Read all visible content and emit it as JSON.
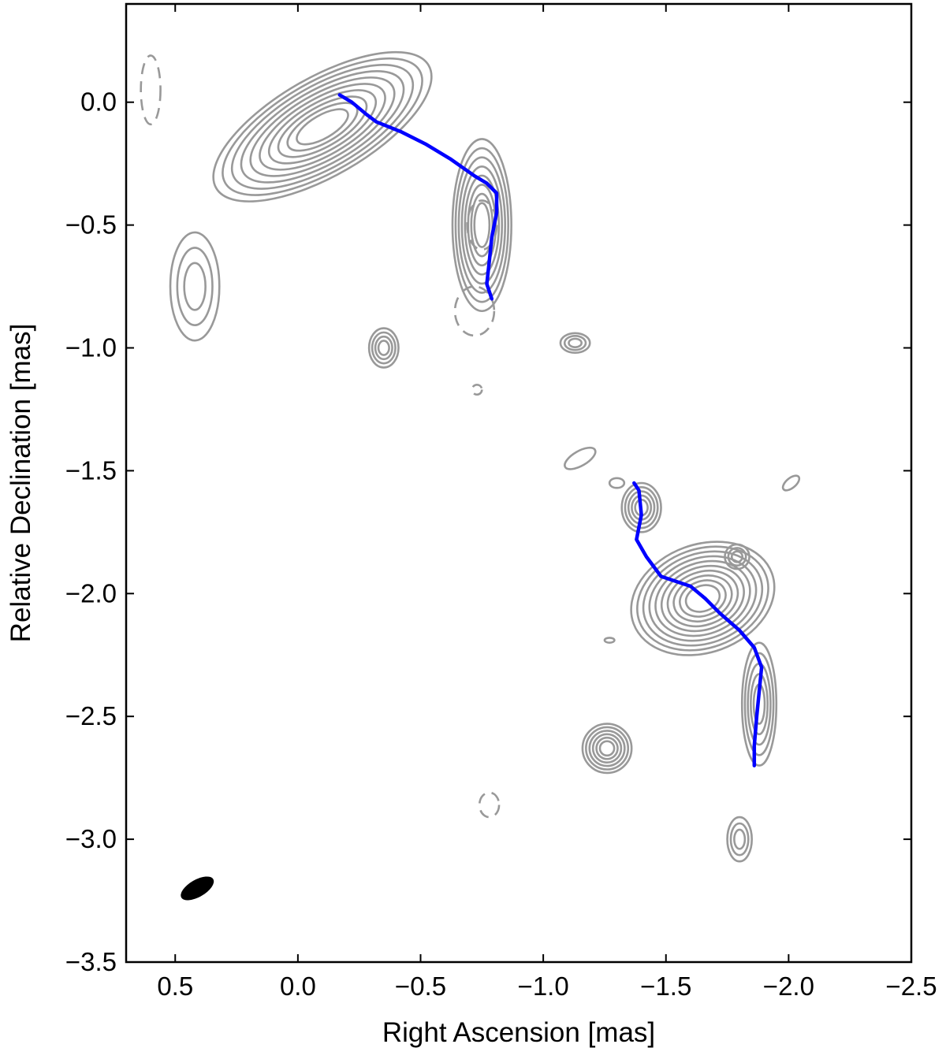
{
  "chart_data": {
    "type": "contour",
    "title": "",
    "xlabel": "Right Ascension [mas]",
    "ylabel": "Relative Declination [mas]",
    "xlim": [
      0.7,
      -2.5
    ],
    "ylim": [
      -3.5,
      0.4
    ],
    "x_axis_inverted": true,
    "xticks": [
      0.5,
      0.0,
      -0.5,
      -1.0,
      -1.5,
      -2.0,
      -2.5
    ],
    "xtick_labels": [
      "0.5",
      "0.0",
      "−0.5",
      "−1.0",
      "−1.5",
      "−2.0",
      "−2.5"
    ],
    "yticks": [
      0.0,
      -0.5,
      -1.0,
      -1.5,
      -2.0,
      -2.5,
      -3.0,
      -3.5
    ],
    "ytick_labels": [
      "0.0",
      "−0.5",
      "−1.0",
      "−1.5",
      "−2.0",
      "−2.5",
      "−3.0",
      "−3.5"
    ],
    "grid": false,
    "colors": {
      "contours": "#999999",
      "ridge": "#0000ff",
      "beam": "#000000",
      "frame": "#000000"
    },
    "ridge_lines": [
      {
        "points": [
          [
            -0.17,
            0.03
          ],
          [
            -0.22,
            0.0
          ],
          [
            -0.28,
            -0.05
          ],
          [
            -0.32,
            -0.08
          ],
          [
            -0.42,
            -0.12
          ],
          [
            -0.52,
            -0.17
          ],
          [
            -0.62,
            -0.23
          ],
          [
            -0.72,
            -0.3
          ],
          [
            -0.77,
            -0.33
          ],
          [
            -0.81,
            -0.37
          ],
          [
            -0.81,
            -0.45
          ],
          [
            -0.79,
            -0.55
          ],
          [
            -0.78,
            -0.65
          ],
          [
            -0.77,
            -0.74
          ],
          [
            -0.79,
            -0.8
          ]
        ]
      },
      {
        "points": [
          [
            -1.37,
            -1.55
          ],
          [
            -1.39,
            -1.58
          ],
          [
            -1.4,
            -1.68
          ],
          [
            -1.38,
            -1.78
          ],
          [
            -1.42,
            -1.85
          ],
          [
            -1.48,
            -1.93
          ],
          [
            -1.54,
            -1.95
          ],
          [
            -1.6,
            -1.97
          ],
          [
            -1.66,
            -2.02
          ],
          [
            -1.72,
            -2.08
          ],
          [
            -1.8,
            -2.15
          ],
          [
            -1.86,
            -2.22
          ],
          [
            -1.89,
            -2.3
          ],
          [
            -1.88,
            -2.4
          ],
          [
            -1.87,
            -2.5
          ],
          [
            -1.86,
            -2.62
          ],
          [
            -1.86,
            -2.7
          ]
        ]
      }
    ],
    "contour_components": [
      {
        "center": [
          -0.1,
          -0.1
        ],
        "rx": 0.5,
        "ry": 0.2,
        "rotation_deg": -30,
        "levels": 10,
        "dashed": false
      },
      {
        "center": [
          -0.75,
          -0.5
        ],
        "rx": 0.12,
        "ry": 0.35,
        "rotation_deg": 0,
        "levels": 8,
        "dashed": false
      },
      {
        "center": [
          -0.35,
          -1.0
        ],
        "rx": 0.06,
        "ry": 0.08,
        "rotation_deg": 0,
        "levels": 4,
        "dashed": false
      },
      {
        "center": [
          0.42,
          -0.75
        ],
        "rx": 0.1,
        "ry": 0.22,
        "rotation_deg": 0,
        "levels": 3,
        "dashed": false
      },
      {
        "center": [
          -1.13,
          -0.98
        ],
        "rx": 0.06,
        "ry": 0.04,
        "rotation_deg": 0,
        "levels": 3,
        "dashed": false
      },
      {
        "center": [
          -1.15,
          -1.45
        ],
        "rx": 0.07,
        "ry": 0.03,
        "rotation_deg": -30,
        "levels": 1,
        "dashed": false
      },
      {
        "center": [
          -1.3,
          -1.55
        ],
        "rx": 0.03,
        "ry": 0.02,
        "rotation_deg": 0,
        "levels": 1,
        "dashed": false
      },
      {
        "center": [
          -1.65,
          -2.02
        ],
        "rx": 0.3,
        "ry": 0.22,
        "rotation_deg": -20,
        "levels": 10,
        "dashed": false
      },
      {
        "center": [
          -1.4,
          -1.65
        ],
        "rx": 0.08,
        "ry": 0.1,
        "rotation_deg": 0,
        "levels": 5,
        "dashed": false
      },
      {
        "center": [
          -1.88,
          -2.45
        ],
        "rx": 0.07,
        "ry": 0.25,
        "rotation_deg": 0,
        "levels": 5,
        "dashed": false
      },
      {
        "center": [
          -1.79,
          -1.85
        ],
        "rx": 0.05,
        "ry": 0.05,
        "rotation_deg": 0,
        "levels": 3,
        "dashed": false
      },
      {
        "center": [
          -1.26,
          -2.63
        ],
        "rx": 0.1,
        "ry": 0.1,
        "rotation_deg": 0,
        "levels": 6,
        "dashed": false
      },
      {
        "center": [
          -1.8,
          -3.0
        ],
        "rx": 0.05,
        "ry": 0.09,
        "rotation_deg": 0,
        "levels": 3,
        "dashed": false
      },
      {
        "center": [
          -2.01,
          -1.55
        ],
        "rx": 0.04,
        "ry": 0.02,
        "rotation_deg": -40,
        "levels": 1,
        "dashed": false
      },
      {
        "center": [
          -1.27,
          -2.19
        ],
        "rx": 0.02,
        "ry": 0.01,
        "rotation_deg": 0,
        "levels": 1,
        "dashed": false
      },
      {
        "center": [
          0.6,
          0.05
        ],
        "rx": 0.04,
        "ry": 0.14,
        "rotation_deg": 0,
        "levels": 1,
        "dashed": true
      },
      {
        "center": [
          -0.75,
          -0.5
        ],
        "rx": 0.06,
        "ry": 0.1,
        "rotation_deg": 0,
        "levels": 1,
        "dashed": true
      },
      {
        "center": [
          -0.72,
          -0.85
        ],
        "rx": 0.08,
        "ry": 0.1,
        "rotation_deg": 0,
        "levels": 1,
        "dashed": true
      },
      {
        "center": [
          -0.73,
          -1.17
        ],
        "rx": 0.02,
        "ry": 0.02,
        "rotation_deg": 0,
        "levels": 1,
        "dashed": true
      },
      {
        "center": [
          -0.78,
          -2.86
        ],
        "rx": 0.04,
        "ry": 0.05,
        "rotation_deg": 0,
        "levels": 1,
        "dashed": true
      }
    ],
    "beam": {
      "center": [
        0.41,
        -3.2
      ],
      "rx": 0.075,
      "ry": 0.035,
      "rotation_deg": 30
    }
  }
}
